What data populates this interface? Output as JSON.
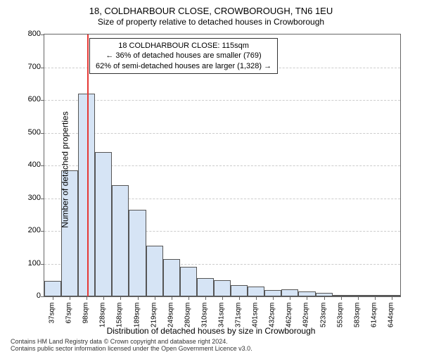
{
  "title": "18, COLDHARBOUR CLOSE, CROWBOROUGH, TN6 1EU",
  "subtitle": "Size of property relative to detached houses in Crowborough",
  "y_axis_label": "Number of detached properties",
  "x_axis_label": "Distribution of detached houses by size in Crowborough",
  "chart": {
    "type": "histogram",
    "ylim": [
      0,
      800
    ],
    "ytick_step": 100,
    "x_categories": [
      "37sqm",
      "67sqm",
      "98sqm",
      "128sqm",
      "158sqm",
      "189sqm",
      "219sqm",
      "249sqm",
      "280sqm",
      "310sqm",
      "341sqm",
      "371sqm",
      "401sqm",
      "432sqm",
      "462sqm",
      "492sqm",
      "523sqm",
      "553sqm",
      "583sqm",
      "614sqm",
      "644sqm"
    ],
    "bar_values": [
      48,
      385,
      620,
      440,
      340,
      265,
      155,
      115,
      90,
      55,
      50,
      35,
      30,
      20,
      22,
      15,
      10,
      5,
      2,
      3,
      2
    ],
    "bar_fill": "#d6e4f5",
    "bar_border": "#555555",
    "background_color": "#ffffff",
    "grid_color": "#cccccc",
    "reference_line": {
      "position_index": 2.55,
      "color": "#e53935"
    }
  },
  "info_box": {
    "line1": "18 COLDHARBOUR CLOSE: 115sqm",
    "line2": "← 36% of detached houses are smaller (769)",
    "line3": "62% of semi-detached houses are larger (1,328) →"
  },
  "footer": {
    "line1": "Contains HM Land Registry data © Crown copyright and database right 2024.",
    "line2": "Contains public sector information licensed under the Open Government Licence v3.0."
  }
}
